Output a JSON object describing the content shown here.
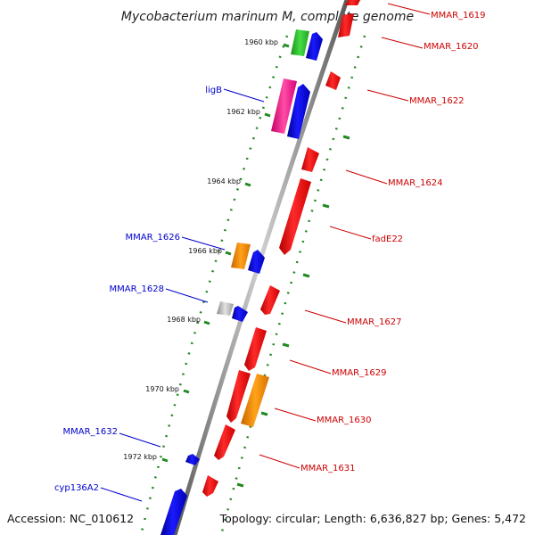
{
  "title": "Mycobacterium marinum M, complete genome",
  "footer": {
    "accession": "Accession: NC_010612",
    "summary": "Topology: circular; Length: 6,636,827 bp; Genes: 5,472"
  },
  "ticks": [
    "1960 kbp",
    "1962 kbp",
    "1964 kbp",
    "1966 kbp",
    "1968 kbp",
    "1970 kbp",
    "1972 kbp"
  ],
  "labels": {
    "right": [
      "MMAR_1619",
      "MMAR_1620",
      "MMAR_1622",
      "MMAR_1624",
      "fadE22",
      "MMAR_1627",
      "MMAR_1629",
      "MMAR_1630",
      "MMAR_1631"
    ],
    "left": [
      "ligB",
      "MMAR_1626",
      "MMAR_1628",
      "MMAR_1632",
      "cyp136A2"
    ]
  },
  "colors": {
    "backbone": "#888888",
    "forward_gene": "#ff0000",
    "reverse_gene": "#0000ff",
    "label_forward": "#cc0000",
    "label_reverse": "#0000cc",
    "tick": "#228822",
    "green_feature": "#33cc33",
    "magenta_feature": "#ff3399",
    "orange_feature": "#ff8800",
    "grey_feature": "#aaaaaa"
  }
}
